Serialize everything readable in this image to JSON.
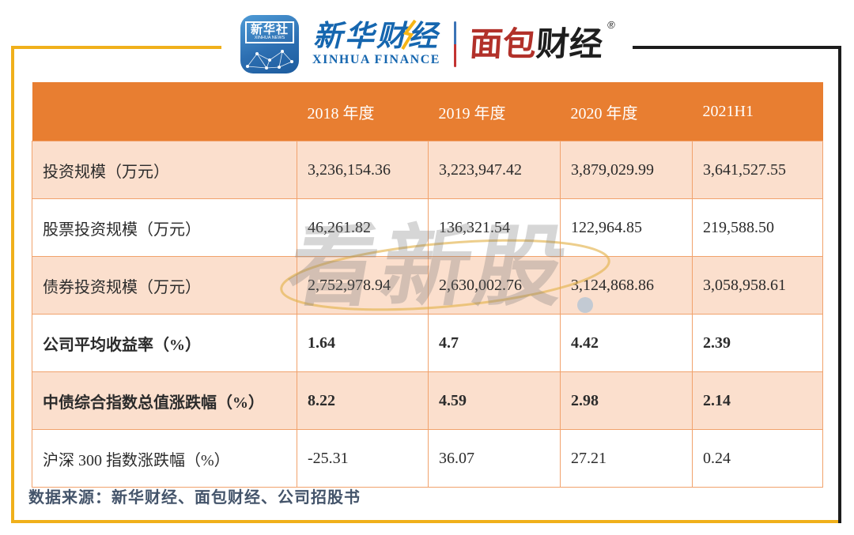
{
  "brand": {
    "app_icon": {
      "cn": "新华社",
      "en": "XINHUA NEWS"
    },
    "xinhua_finance": {
      "cn": "新华财经",
      "en": "XINHUA FINANCE"
    },
    "bread_finance": {
      "part_red": "面包",
      "part_dark": "财经",
      "registered": "®"
    }
  },
  "chart_data": {
    "type": "table",
    "columns": [
      "2018 年度",
      "2019 年度",
      "2020 年度",
      "2021H1"
    ],
    "rows": [
      {
        "label": "投资规模（万元）",
        "values": [
          "3,236,154.36",
          "3,223,947.42",
          "3,879,029.99",
          "3,641,527.55"
        ],
        "bold": false,
        "shaded": true
      },
      {
        "label": "股票投资规模（万元）",
        "values": [
          "46,261.82",
          "136,321.54",
          "122,964.85",
          "219,588.50"
        ],
        "bold": false,
        "shaded": false
      },
      {
        "label": "债券投资规模（万元）",
        "values": [
          "2,752,978.94",
          "2,630,002.76",
          "3,124,868.86",
          "3,058,958.61"
        ],
        "bold": false,
        "shaded": true
      },
      {
        "label": "公司平均收益率（%）",
        "values": [
          "1.64",
          "4.7",
          "4.42",
          "2.39"
        ],
        "bold": true,
        "shaded": false
      },
      {
        "label": "中债综合指数总值涨跌幅（%）",
        "values": [
          "8.22",
          "4.59",
          "2.98",
          "2.14"
        ],
        "bold": true,
        "shaded": true
      },
      {
        "label": "沪深 300 指数涨跌幅（%）",
        "values": [
          "-25.31",
          "36.07",
          "27.21",
          "0.24"
        ],
        "bold": false,
        "shaded": false
      }
    ]
  },
  "watermark": {
    "text": "看新股"
  },
  "footer": {
    "source": "数据来源：新华财经、面包财经、公司招股书"
  },
  "colors": {
    "header_bg": "#E87E31",
    "row_shaded": "#FBDFCD",
    "cell_border": "#F1A26C",
    "frame_gold": "#F0B01B",
    "frame_dark": "#1C1C1C",
    "brand_blue": "#1566AF",
    "brand_red": "#B2312A",
    "footer_text": "#44546A"
  }
}
